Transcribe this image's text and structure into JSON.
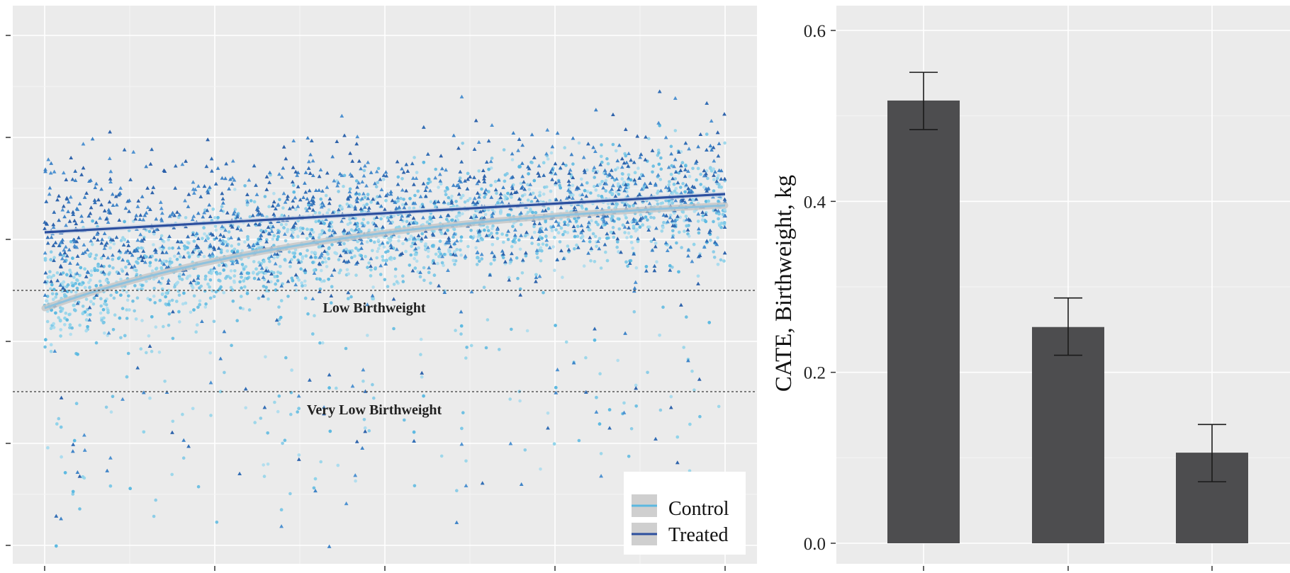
{
  "chart_data": [
    {
      "type": "scatter",
      "title": "",
      "xlabel": "",
      "ylabel": "",
      "grid": true,
      "legend_position": "bottom-right",
      "legend": [
        {
          "name": "Control",
          "color": "#5bb8e0"
        },
        {
          "name": "Treated",
          "color": "#2c4f9e"
        }
      ],
      "annotations": [
        {
          "text": "Low Birthweight"
        },
        {
          "text": "Very Low Birthweight"
        }
      ],
      "reference_lines": [
        "Low Birthweight",
        "Very Low Birthweight"
      ],
      "series": [
        {
          "name": "Control",
          "marker": "circle",
          "color": "#5bb8e0",
          "trend": "curve rising steeply then levelling, ending near the Treated line"
        },
        {
          "name": "Treated",
          "marker": "triangle",
          "color": "#2c4f9e",
          "trend": "slowly rising straight line"
        }
      ]
    },
    {
      "type": "bar",
      "title": "",
      "xlabel": "",
      "ylabel": "CATE, Birthweight, kg",
      "ylim": [
        0.0,
        0.63
      ],
      "yticks": [
        "0.0",
        "0.2",
        "0.4",
        "0.6"
      ],
      "grid": true,
      "categories": [
        "",
        "",
        ""
      ],
      "values": [
        0.518,
        0.253,
        0.106
      ],
      "error_low": [
        0.484,
        0.22,
        0.072
      ],
      "error_high": [
        0.551,
        0.287,
        0.139
      ],
      "bar_color": "#4d4d4f"
    }
  ]
}
